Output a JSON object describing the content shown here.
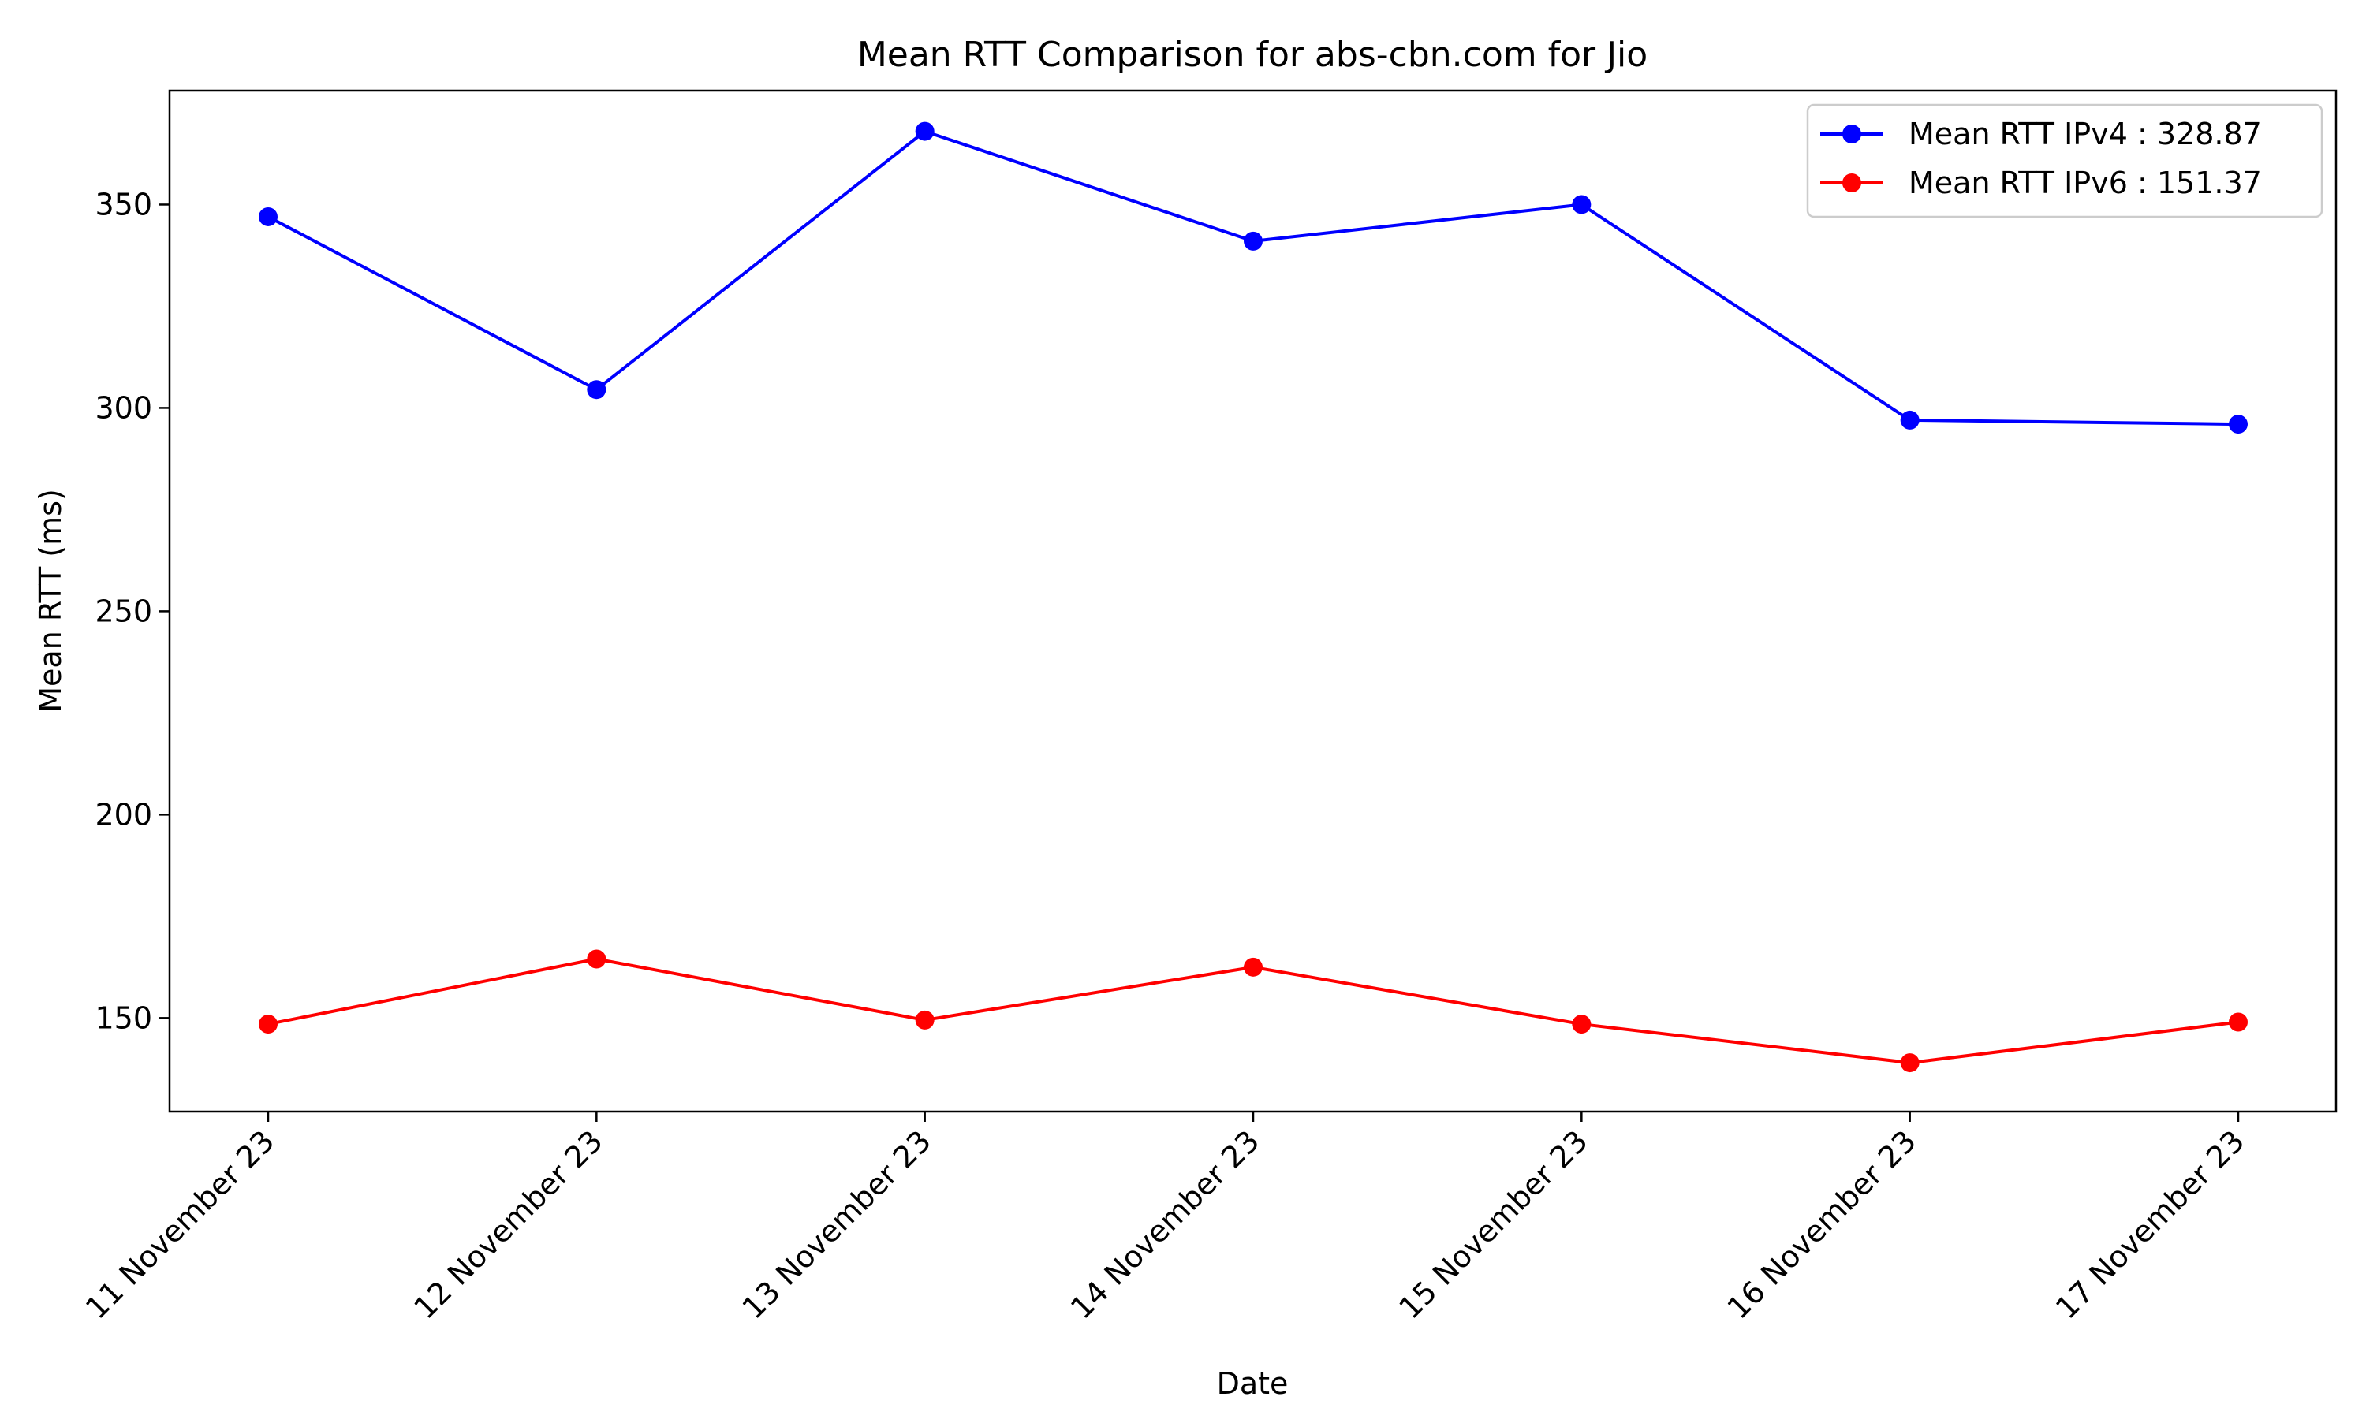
{
  "chart_data": {
    "type": "line",
    "title": "Mean RTT Comparison for abs-cbn.com for Jio",
    "xlabel": "Date",
    "ylabel": "Mean RTT (ms)",
    "categories": [
      "11 November 23",
      "12 November 23",
      "13 November 23",
      "14 November 23",
      "15 November 23",
      "16 November 23",
      "17 November 23"
    ],
    "yticks": [
      150,
      200,
      250,
      300,
      350
    ],
    "ylim": [
      127,
      378
    ],
    "grid": false,
    "legend_position": "top-right",
    "series": [
      {
        "name": "Mean RTT IPv4 : 328.87",
        "color": "#0000ff",
        "values": [
          347,
          304.5,
          368,
          341,
          350,
          297,
          296
        ]
      },
      {
        "name": "Mean RTT IPv6 : 151.37",
        "color": "#ff0000",
        "values": [
          148.5,
          164.5,
          149.5,
          162.5,
          148.5,
          139,
          149
        ]
      }
    ]
  }
}
